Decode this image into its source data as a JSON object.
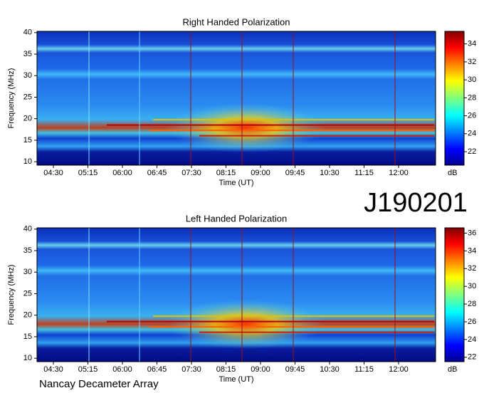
{
  "chart_data": [
    {
      "type": "spectrogram",
      "title": "Right Handed Polarization",
      "x_label": "Time (UT)",
      "y_label": "Frequency (MHz)",
      "xticks": [
        "04:30",
        "05:15",
        "06:00",
        "06:45",
        "07:30",
        "08:15",
        "09:00",
        "09:45",
        "10:30",
        "11:15",
        "12:00"
      ],
      "ylim": [
        9.2,
        40.3
      ],
      "yticks": [
        10,
        15,
        20,
        25,
        30,
        35,
        40
      ],
      "colorbar_label": "dB",
      "clim": [
        20.5,
        35.4
      ],
      "cticks": [
        22,
        24,
        26,
        28,
        30,
        32,
        34
      ]
    },
    {
      "type": "spectrogram",
      "title": "Left Handed Polarization",
      "x_label": "Time (UT)",
      "y_label": "Frequency (MHz)",
      "xticks": [
        "04:30",
        "05:15",
        "06:00",
        "06:45",
        "07:30",
        "08:15",
        "09:00",
        "09:45",
        "10:30",
        "11:15",
        "12:00"
      ],
      "ylim": [
        9.2,
        40.3
      ],
      "yticks": [
        10,
        15,
        20,
        25,
        30,
        35,
        40
      ],
      "colorbar_label": "dB",
      "clim": [
        21.5,
        36.6
      ],
      "cticks": [
        22,
        24,
        26,
        28,
        30,
        32,
        34,
        36
      ]
    }
  ],
  "annotations": {
    "observation": "J190201",
    "instrument": "Nancay Decameter Array"
  }
}
